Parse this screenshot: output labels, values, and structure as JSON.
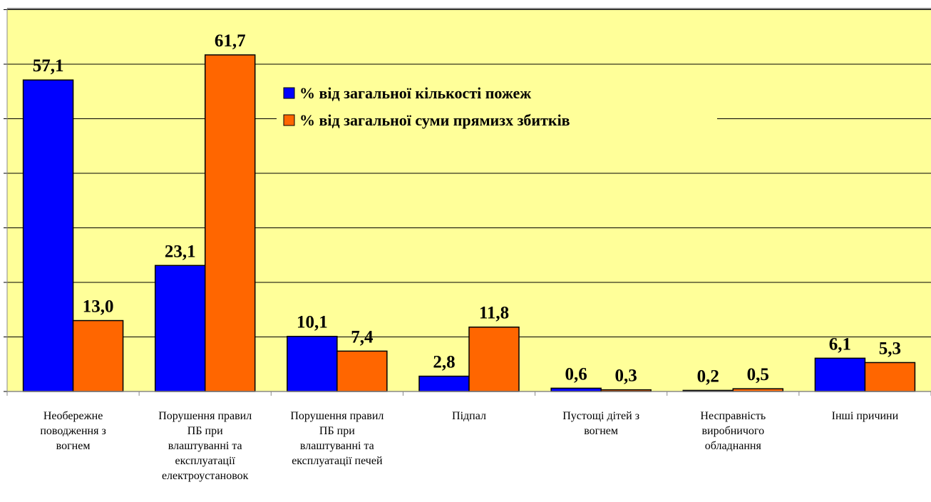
{
  "chart_data": {
    "type": "bar",
    "categories": [
      "Необережне\nповодження з\nвогнем",
      "Порушення правил\nПБ при\nвлаштуванні та\nексплуатації\nелектроустановок",
      "Порушення правил\nПБ при\nвлаштуванні та\nексплуатації печей",
      "Підпал",
      "Пустощі дітей з\nвогнем",
      "Несправність\nвиробничого\nобладнання",
      "Інші причини"
    ],
    "series": [
      {
        "name": "% від загальної кількості пожеж",
        "color": "#0000ff",
        "values": [
          57.1,
          23.1,
          10.1,
          2.8,
          0.6,
          0.2,
          6.1
        ],
        "value_labels": [
          "57,1",
          "23,1",
          "10,1",
          "2,8",
          "0,6",
          "0,2",
          "6,1"
        ]
      },
      {
        "name": "% від загальної суми прямизх збитків",
        "color": "#ff6600",
        "values": [
          13.0,
          61.7,
          7.4,
          11.8,
          0.3,
          0.5,
          5.3
        ],
        "value_labels": [
          "13,0",
          "61,7",
          "7,4",
          "11,8",
          "0,3",
          "0,5",
          "5,3"
        ]
      }
    ],
    "ylim": [
      0,
      70
    ],
    "yticks": [
      0,
      10,
      20,
      30,
      40,
      50,
      60,
      70
    ],
    "grid": true,
    "legend": "top-center"
  }
}
